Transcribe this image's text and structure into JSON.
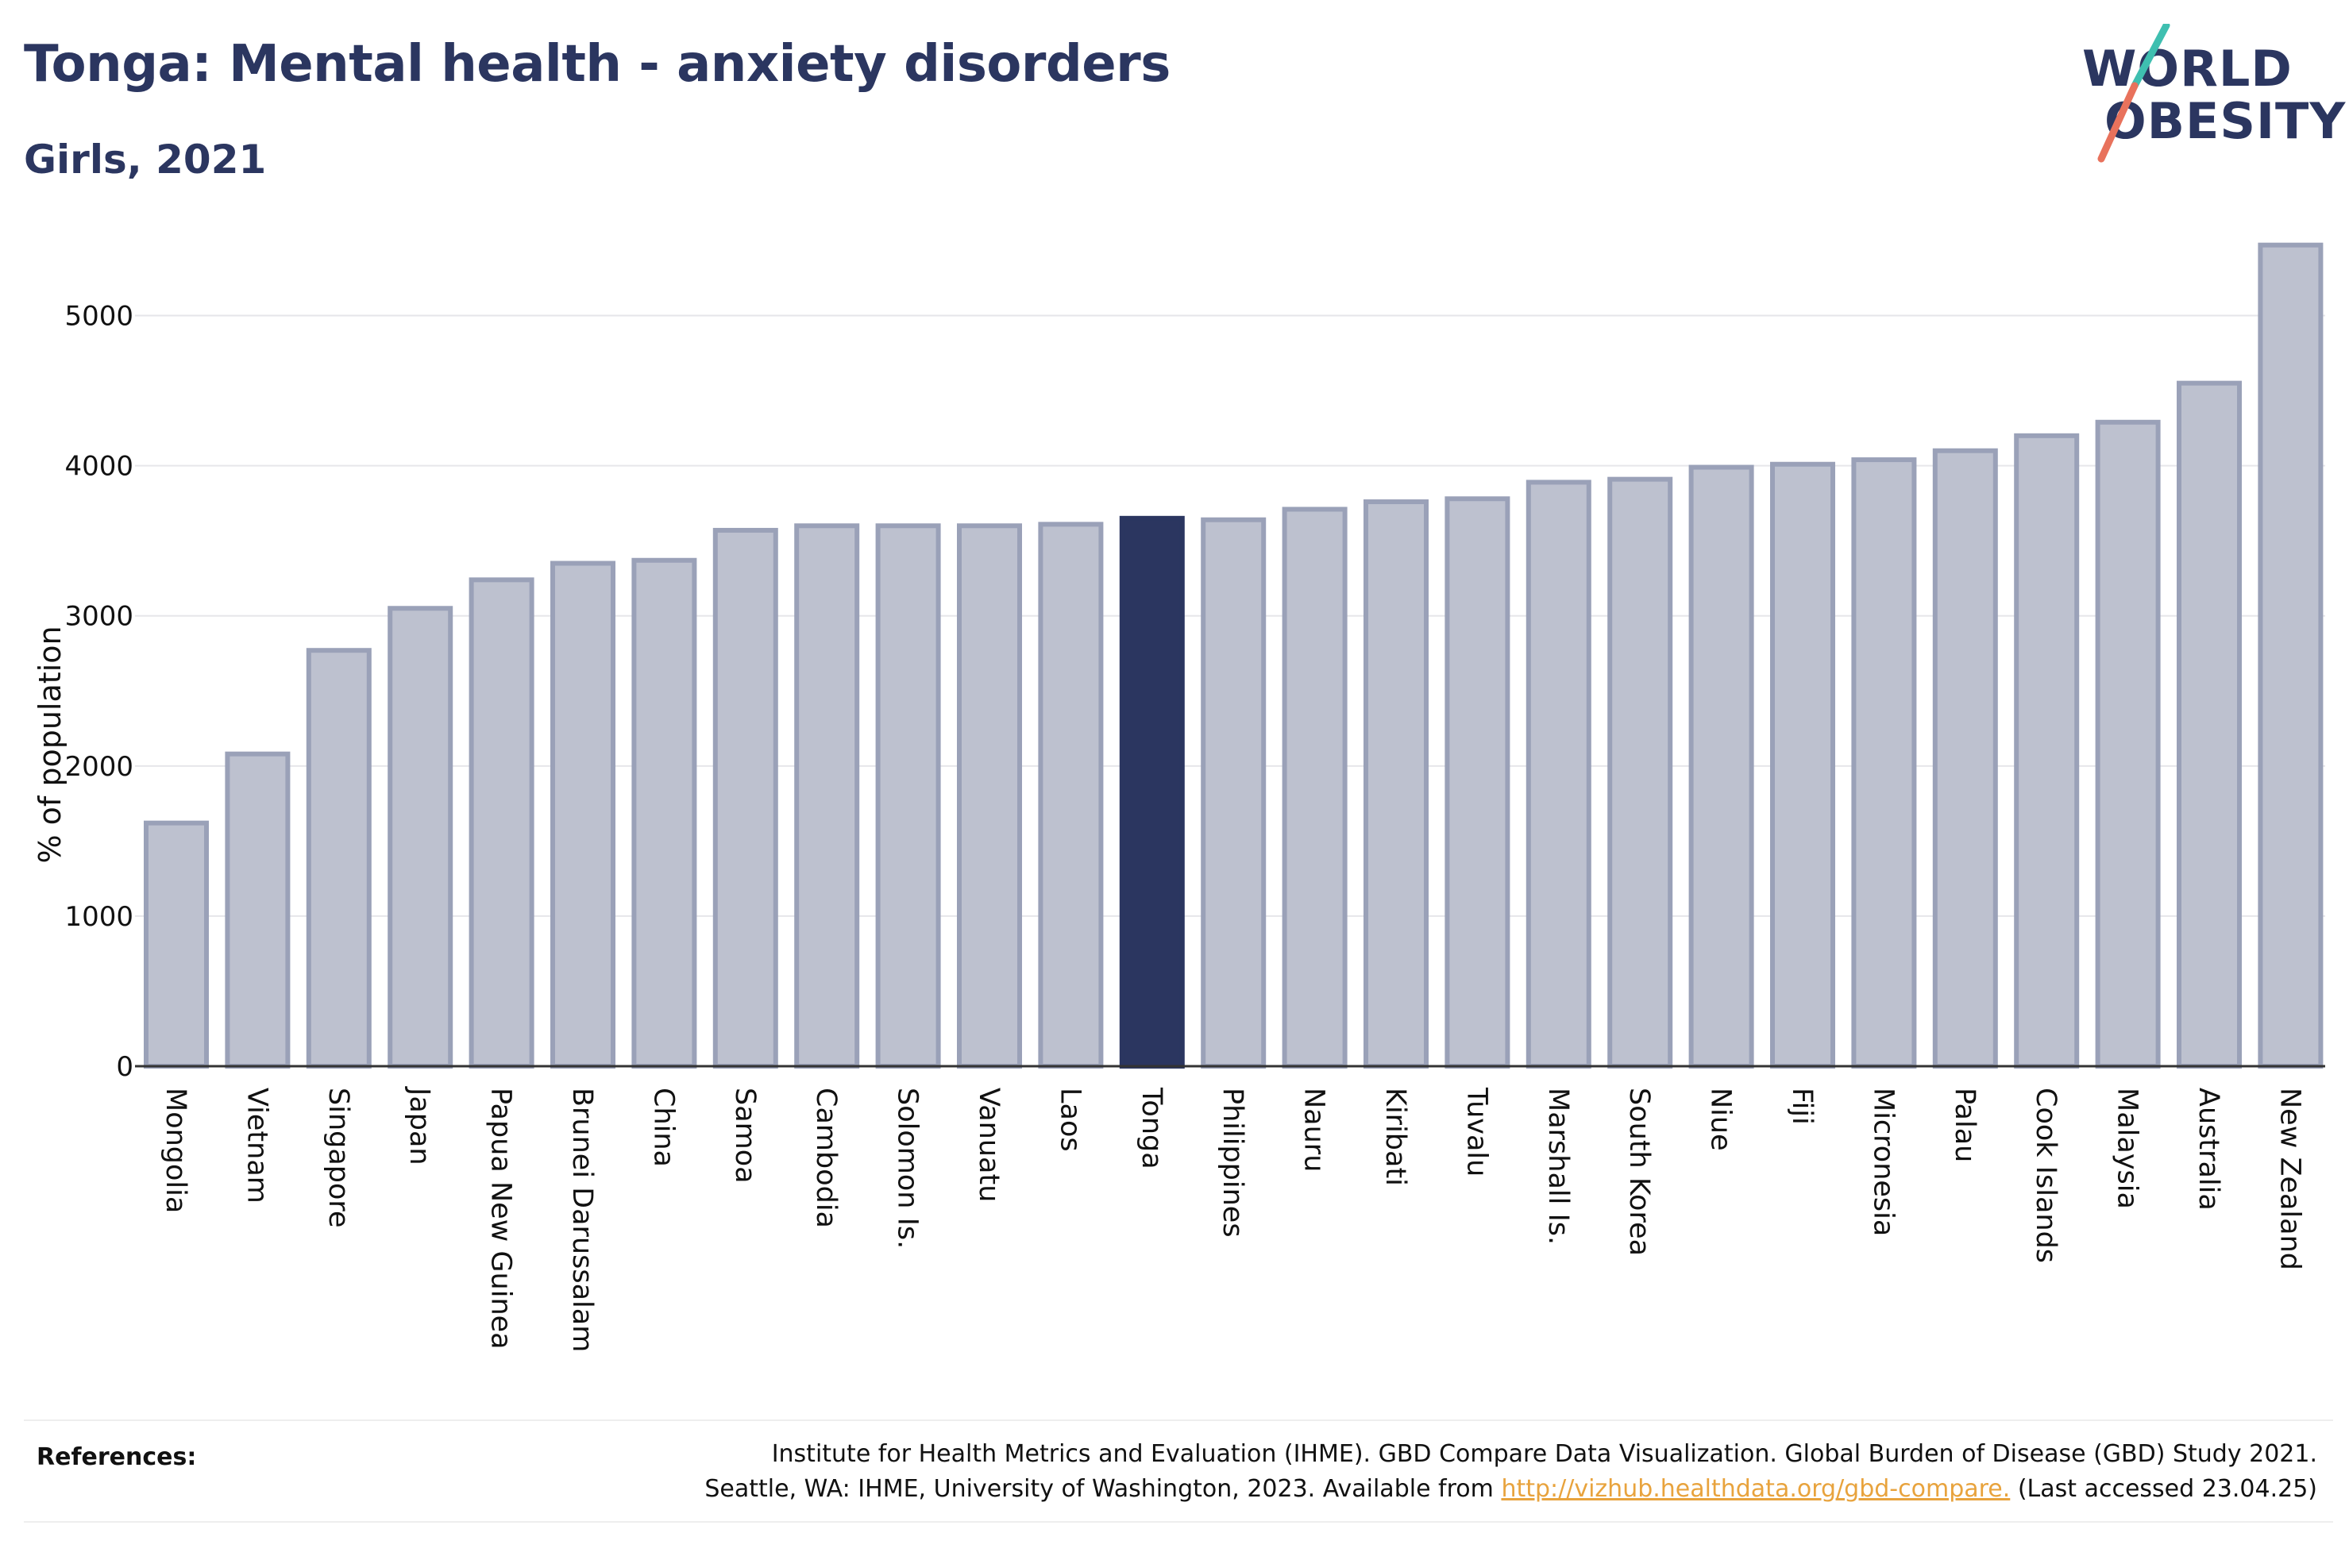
{
  "header": {
    "title": "Tonga: Mental health - anxiety disorders",
    "subtitle": "Girls, 2021"
  },
  "logo": {
    "line1": "WORLD",
    "line2": "OBESITY",
    "slash_colors": [
      "#3fbfb0",
      "#e8725c"
    ]
  },
  "colors": {
    "bar_default": "#bdc1cf",
    "bar_border": "#9aa1b8",
    "bar_highlight": "#2b3660",
    "title": "#2b3660",
    "link": "#e8a33d"
  },
  "chart_data": {
    "type": "bar",
    "ylabel": "% of population",
    "xlabel": "",
    "ylim": [
      0,
      5500
    ],
    "yticks": [
      0,
      1000,
      2000,
      3000,
      4000,
      5000
    ],
    "grid": true,
    "highlight": "Tonga",
    "categories": [
      "Mongolia",
      "Vietnam",
      "Singapore",
      "Japan",
      "Papua New Guinea",
      "Brunei Darussalam",
      "China",
      "Samoa",
      "Cambodia",
      "Solomon Is.",
      "Vanuatu",
      "Laos",
      "Tonga",
      "Philippines",
      "Nauru",
      "Kiribati",
      "Tuvalu",
      "Marshall Is.",
      "South Korea",
      "Niue",
      "Fiji",
      "Micronesia",
      "Palau",
      "Cook Islands",
      "Malaysia",
      "Australia",
      "New Zealand"
    ],
    "values": [
      1620,
      2080,
      2770,
      3050,
      3240,
      3350,
      3370,
      3570,
      3600,
      3600,
      3600,
      3610,
      3650,
      3640,
      3710,
      3760,
      3780,
      3890,
      3910,
      3990,
      4010,
      4040,
      4100,
      4200,
      4290,
      4550,
      5470
    ]
  },
  "references": {
    "label": "References:",
    "line1": "Institute for Health Metrics and Evaluation (IHME). GBD Compare Data Visualization. Global Burden of Disease (GBD) Study 2021.",
    "line2_prefix": "Seattle, WA: IHME, University of Washington, 2023. Available from",
    "link": "http://vizhub.healthdata.org/gbd-compare.",
    "line2_suffix": "(Last accessed 23.04.25)"
  }
}
